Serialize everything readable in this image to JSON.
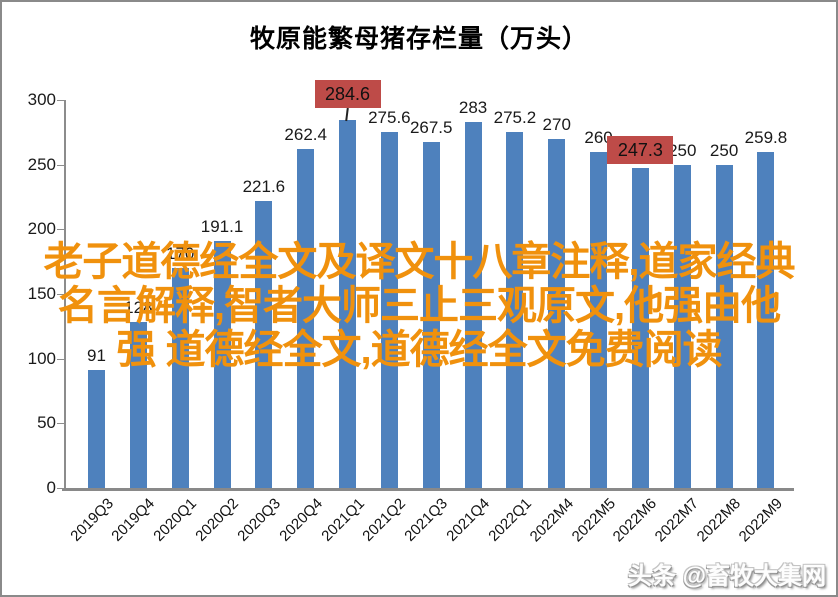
{
  "chart_data": {
    "type": "bar",
    "title": "牧原能繁母猪存栏量（万头）",
    "categories": [
      "2019Q3",
      "2019Q4",
      "2020Q1",
      "2020Q2",
      "2020Q3",
      "2020Q4",
      "2021Q1",
      "2021Q2",
      "2021Q3",
      "2021Q4",
      "2022Q1",
      "2022M4",
      "2022M5",
      "2022M6",
      "2022M7",
      "2022M8",
      "2022M9"
    ],
    "values": [
      91,
      128,
      170,
      191.1,
      221.6,
      262.4,
      284.6,
      275.6,
      267.5,
      283,
      275.2,
      270,
      260,
      247.3,
      250,
      250,
      259.8
    ],
    "value_labels": [
      "91",
      "128",
      "170",
      "191.1",
      "221.6",
      "262.4",
      "284.6",
      "275.6",
      "267.5",
      "283",
      "275.2",
      "270",
      "260",
      "247.3",
      "250",
      "250",
      "259.8"
    ],
    "ylim": [
      0,
      300
    ],
    "yticks": [
      0,
      50,
      100,
      150,
      200,
      250,
      300
    ],
    "grid": false,
    "legend": "none",
    "bar_color": "#4e81bd",
    "axis_color": "#8c8c8c",
    "label_color": "#1a1a1a",
    "highlights": [
      {
        "index": 6,
        "box_color": "#be4b48",
        "leader": true
      },
      {
        "index": 13,
        "box_color": "#be4b48",
        "leader": false
      }
    ]
  },
  "watermark": {
    "color": "#f0910d",
    "lines": [
      "老子道德经全文及译文十八章注释,道家经典",
      "名言解释,智者大师三止三观原文,他强由他",
      "强 道德经全文,道德经全文免费阅读"
    ]
  },
  "credit": {
    "text": "头条 @畜牧大集网"
  }
}
